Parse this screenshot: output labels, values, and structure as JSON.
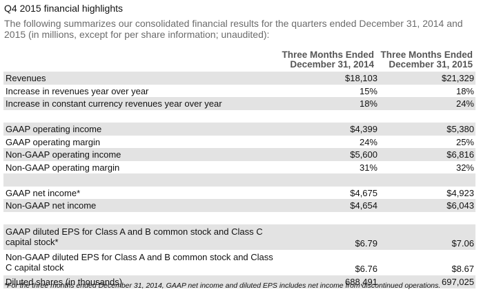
{
  "title": "Q4 2015 financial highlights",
  "intro": "The following summarizes our consolidated financial results for the quarters ended December 31, 2014 and 2015 (in millions, except for per share information; unaudited):",
  "columns": [
    {
      "line1": "Three Months Ended",
      "line2": "December 31, 2014"
    },
    {
      "line1": "Three Months Ended",
      "line2": "December 31, 2015"
    }
  ],
  "rows": [
    {
      "label": "Revenues",
      "v1": "$18,103",
      "v2": "$21,329"
    },
    {
      "label": "Increase in revenues year over year",
      "v1": "15%",
      "v2": "18%"
    },
    {
      "label": "Increase in constant currency revenues year over year",
      "v1": "18%",
      "v2": "24%"
    },
    {
      "label": "",
      "v1": "",
      "v2": ""
    },
    {
      "label": "GAAP operating income",
      "v1": "$4,399",
      "v2": "$5,380"
    },
    {
      "label": "GAAP operating margin",
      "v1": "24%",
      "v2": "25%"
    },
    {
      "label": "Non-GAAP operating income",
      "v1": "$5,600",
      "v2": "$6,816"
    },
    {
      "label": "Non-GAAP operating margin",
      "v1": "31%",
      "v2": "32%"
    },
    {
      "label": "",
      "v1": "",
      "v2": ""
    },
    {
      "label": "GAAP net income*",
      "v1": "$4,675",
      "v2": "$4,923"
    },
    {
      "label": "Non-GAAP net income",
      "v1": "$4,654",
      "v2": "$6,043"
    },
    {
      "label": "",
      "v1": "",
      "v2": ""
    },
    {
      "label": "GAAP diluted EPS for Class A and B common stock and Class C capital stock*",
      "v1": "$6.79",
      "v2": "$7.06"
    },
    {
      "label": "Non-GAAP diluted EPS for Class A and B common stock and Class C capital stock",
      "v1": "$6.76",
      "v2": "$8.67"
    },
    {
      "label": "Diluted shares (in thousands)",
      "v1": "688,491",
      "v2": "697,025"
    }
  ],
  "footnote": "*For the three months ended December 31, 2014, GAAP net income and diluted EPS includes net income from discontinued operations.",
  "colors": {
    "shade": "#e3e3e3",
    "intro_text": "#6b6b6b",
    "header_text": "#555555"
  }
}
